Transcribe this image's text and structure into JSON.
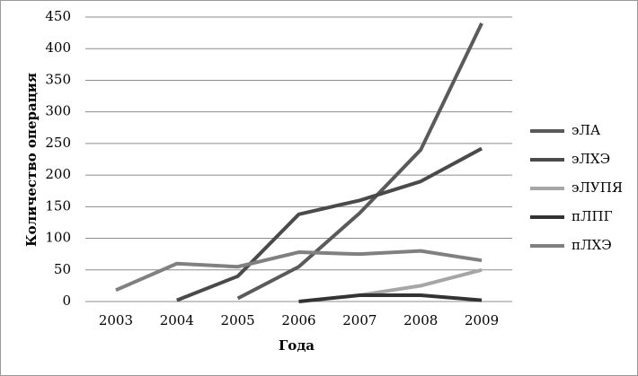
{
  "chart_data": {
    "type": "line",
    "x_label": "Года",
    "y_label": "Количество операция",
    "categories": [
      "2003",
      "2004",
      "2005",
      "2006",
      "2007",
      "2008",
      "2009"
    ],
    "series": [
      {
        "name": "эЛА",
        "color": "#5a5a5a",
        "values": [
          null,
          null,
          5,
          55,
          140,
          240,
          440
        ]
      },
      {
        "name": "эЛХЭ",
        "color": "#4a4a4a",
        "values": [
          null,
          2,
          40,
          138,
          160,
          190,
          242
        ]
      },
      {
        "name": "эЛУПЯ",
        "color": "#a6a6a6",
        "values": [
          null,
          null,
          null,
          null,
          10,
          25,
          50
        ]
      },
      {
        "name": "пЛПГ",
        "color": "#333333",
        "values": [
          null,
          null,
          null,
          0,
          10,
          10,
          2
        ]
      },
      {
        "name": "пЛХЭ",
        "color": "#808080",
        "values": [
          18,
          60,
          55,
          78,
          75,
          80,
          65
        ]
      }
    ],
    "ylim": [
      0,
      450
    ],
    "yticks": [
      0,
      50,
      100,
      150,
      200,
      250,
      300,
      350,
      400,
      450
    ],
    "grid": true,
    "legend": "right"
  }
}
